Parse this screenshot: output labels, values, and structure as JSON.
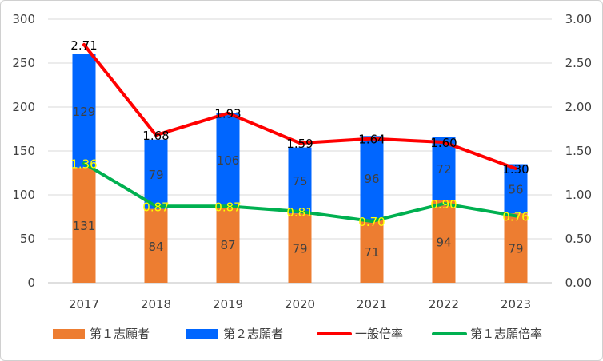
{
  "chart_data": {
    "type": "bar",
    "stacked": true,
    "categories": [
      "2017",
      "2018",
      "2019",
      "2020",
      "2021",
      "2022",
      "2023"
    ],
    "series": [
      {
        "name": "第１志願者",
        "kind": "bar",
        "axis": "left",
        "color": "#ED7D31",
        "label_color": "#404040",
        "values": [
          131,
          84,
          87,
          79,
          71,
          94,
          79
        ]
      },
      {
        "name": "第２志願者",
        "kind": "bar",
        "axis": "left",
        "color": "#0066FF",
        "label_color": "#404040",
        "values": [
          129,
          79,
          106,
          75,
          96,
          72,
          56
        ]
      },
      {
        "name": "一般倍率",
        "kind": "line",
        "axis": "right",
        "color": "#FF0000",
        "label_color": "#000000",
        "values": [
          2.71,
          1.68,
          1.93,
          1.59,
          1.64,
          1.6,
          1.3
        ],
        "labels": [
          "2.71",
          "1.68",
          "1.93",
          "1.59",
          "1.64",
          "1.60",
          "1.30"
        ]
      },
      {
        "name": "第１志願倍率",
        "kind": "line",
        "axis": "right",
        "color": "#00B050",
        "label_color": "#FFFF00",
        "values": [
          1.36,
          0.87,
          0.87,
          0.81,
          0.7,
          0.9,
          0.76
        ],
        "labels": [
          "1.36",
          "0.87",
          "0.87",
          "0.81",
          "0.70",
          "0.90",
          "0.76"
        ]
      }
    ],
    "y_left": {
      "min": 0,
      "max": 300,
      "step": 50,
      "ticks": [
        "0",
        "50",
        "100",
        "150",
        "200",
        "250",
        "300"
      ]
    },
    "y_right": {
      "min": 0,
      "max": 3,
      "step": 0.5,
      "ticks": [
        "0.00",
        "0.50",
        "1.00",
        "1.50",
        "2.00",
        "2.50",
        "3.00"
      ]
    },
    "grid": true,
    "legend_position": "bottom"
  }
}
